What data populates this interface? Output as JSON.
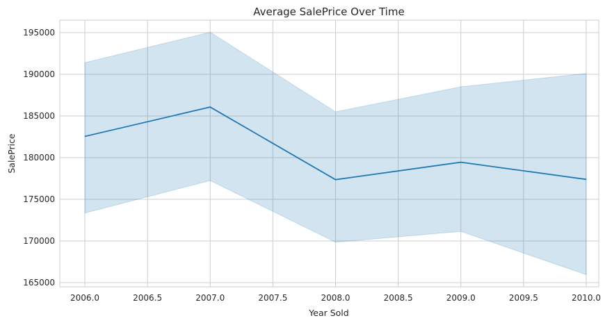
{
  "chart_data": {
    "type": "line",
    "title": "Average SalePrice Over Time",
    "xlabel": "Year Sold",
    "ylabel": "SalePrice",
    "xlim": [
      2005.8,
      2010.1
    ],
    "ylim": [
      164500,
      196500
    ],
    "xticks": [
      2006.0,
      2006.5,
      2007.0,
      2007.5,
      2008.0,
      2008.5,
      2009.0,
      2009.5,
      2010.0
    ],
    "xtick_labels": [
      "2006.0",
      "2006.5",
      "2007.0",
      "2007.5",
      "2008.0",
      "2008.5",
      "2009.0",
      "2009.5",
      "2010.0"
    ],
    "yticks": [
      165000,
      170000,
      175000,
      180000,
      185000,
      190000,
      195000
    ],
    "ytick_labels": [
      "165000",
      "170000",
      "175000",
      "180000",
      "185000",
      "190000",
      "195000"
    ],
    "grid": true,
    "colors": {
      "line": "#1f77b4",
      "band": "#1f77b4",
      "grid": "#cccccc"
    },
    "series": [
      {
        "x": [
          2006,
          2007,
          2008,
          2009,
          2010
        ],
        "y": [
          182550,
          186070,
          177360,
          179450,
          177390
        ],
        "ci_lower": [
          173350,
          177250,
          169850,
          171150,
          165950
        ],
        "ci_upper": [
          191400,
          195050,
          185500,
          188500,
          190100
        ]
      }
    ]
  }
}
